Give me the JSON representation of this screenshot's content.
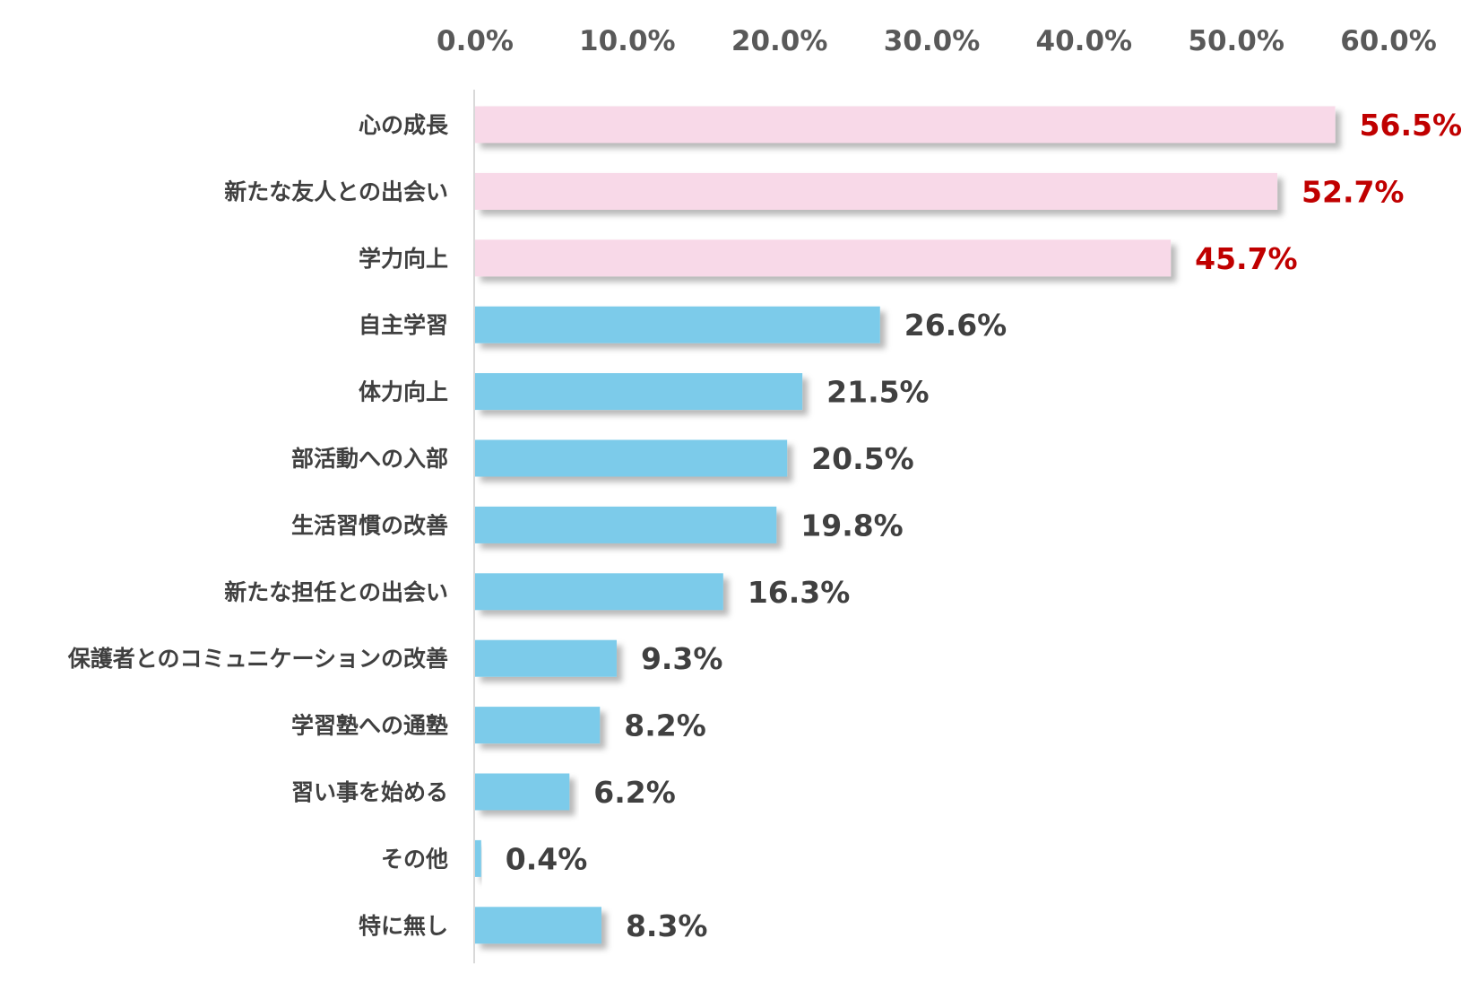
{
  "chart_data": {
    "type": "bar",
    "orientation": "horizontal",
    "xlim": [
      0,
      60
    ],
    "x_ticks": [
      "0.0%",
      "10.0%",
      "20.0%",
      "30.0%",
      "40.0%",
      "50.0%",
      "60.0%"
    ],
    "x_axis_position": "top",
    "grid": false,
    "categories": [
      "心の成長",
      "新たな友人との出会い",
      "学力向上",
      "自主学習",
      "体力向上",
      "部活動への入部",
      "生活習慣の改善",
      "新たな担任との出会い",
      "保護者とのコミュニケーションの改善",
      "学習塾への通塾",
      "習い事を始める",
      "その他",
      "特に無し"
    ],
    "values": [
      56.5,
      52.7,
      45.7,
      26.6,
      21.5,
      20.5,
      19.8,
      16.3,
      9.3,
      8.2,
      6.2,
      0.4,
      8.3
    ],
    "value_labels": [
      "56.5%",
      "52.7%",
      "45.7%",
      "26.6%",
      "21.5%",
      "20.5%",
      "19.8%",
      "16.3%",
      "9.3%",
      "8.2%",
      "6.2%",
      "0.4%",
      "8.3%"
    ],
    "highlight_count": 3,
    "colors": {
      "highlight_bar": "#F8D9E8",
      "normal_bar": "#7BCBEA",
      "highlight_label": "#C00000",
      "normal_label": "#404040",
      "tick_label": "#595959",
      "axis_line": "#D9D9D9"
    }
  }
}
